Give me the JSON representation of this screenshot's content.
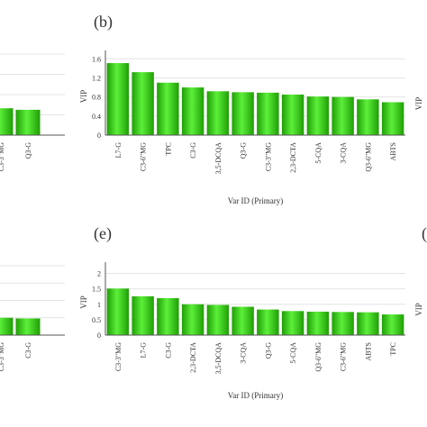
{
  "colors": {
    "bar_light": "#5cf03a",
    "bar_dark": "#1f9e05",
    "grid": "#e4e4e4",
    "axis": "#555555",
    "text": "#333333"
  },
  "chart_data": [
    {
      "id": "left-top-partial",
      "type": "bar",
      "panel_label": "",
      "categories": [
        "",
        "C3-3\"MG",
        "Q3-G"
      ],
      "values": [
        0.55,
        0.53,
        0.5
      ],
      "ylim": [
        0,
        1.6
      ],
      "yticks": [],
      "ylabel": "",
      "xlabel": "",
      "grid": true
    },
    {
      "id": "panel-b",
      "type": "bar",
      "panel_label": "(b)",
      "categories": [
        "L7-G",
        "C3-6\"MG",
        "TPC",
        "C3-G",
        "3,5-DCQA",
        "Q3-G",
        "C3-3\"MG",
        "2,3-DCTA",
        "5-CQA",
        "3-CQA",
        "Q3-6\"MG",
        "ABTS"
      ],
      "values": [
        1.51,
        1.32,
        1.1,
        1.0,
        0.92,
        0.9,
        0.89,
        0.85,
        0.81,
        0.8,
        0.75,
        0.69
      ],
      "ylim": [
        0,
        1.7
      ],
      "yticks": [
        "0",
        "0.4",
        "0.8",
        "1.2",
        "1.6"
      ],
      "ytick_values": [
        0,
        0.4,
        0.8,
        1.2,
        1.6
      ],
      "ylabel": "VIP",
      "xlabel": "Var ID (Primary)",
      "grid": true
    },
    {
      "id": "right-top-partial",
      "type": "bar",
      "panel_label": "",
      "categories": [],
      "values": [],
      "ylabel": "VIP",
      "grid": true
    },
    {
      "id": "left-bottom-partial",
      "type": "bar",
      "panel_label": "",
      "categories": [
        "",
        "C3-3\"MG",
        "C3-G"
      ],
      "values": [
        0.68,
        0.5,
        0.48
      ],
      "ylim": [
        0,
        2
      ],
      "yticks": [],
      "ylabel": "",
      "xlabel": "",
      "grid": true
    },
    {
      "id": "panel-e",
      "type": "bar",
      "panel_label": "(e)",
      "categories": [
        "C3-3\"MG",
        "L7-G",
        "C3-G",
        "2,3-DCTA",
        "3,5-DCQA",
        "3-CQA",
        "Q3-G",
        "5-CQA",
        "Q3-6\"MG",
        "C3-6\"MG",
        "ABTS",
        "TPC"
      ],
      "values": [
        1.51,
        1.26,
        1.2,
        1.0,
        0.98,
        0.92,
        0.83,
        0.78,
        0.76,
        0.75,
        0.74,
        0.67
      ],
      "ylim": [
        0,
        2.25
      ],
      "yticks": [
        "0",
        "0.5",
        "1",
        "1.5",
        "2"
      ],
      "ytick_values": [
        0,
        0.5,
        1,
        1.5,
        2
      ],
      "ylabel": "VIP",
      "xlabel": "Var ID (Primary)",
      "grid": true
    },
    {
      "id": "right-bottom-partial",
      "type": "bar",
      "panel_label": "(",
      "categories": [],
      "values": [],
      "ylabel": "VIP",
      "grid": true
    }
  ]
}
